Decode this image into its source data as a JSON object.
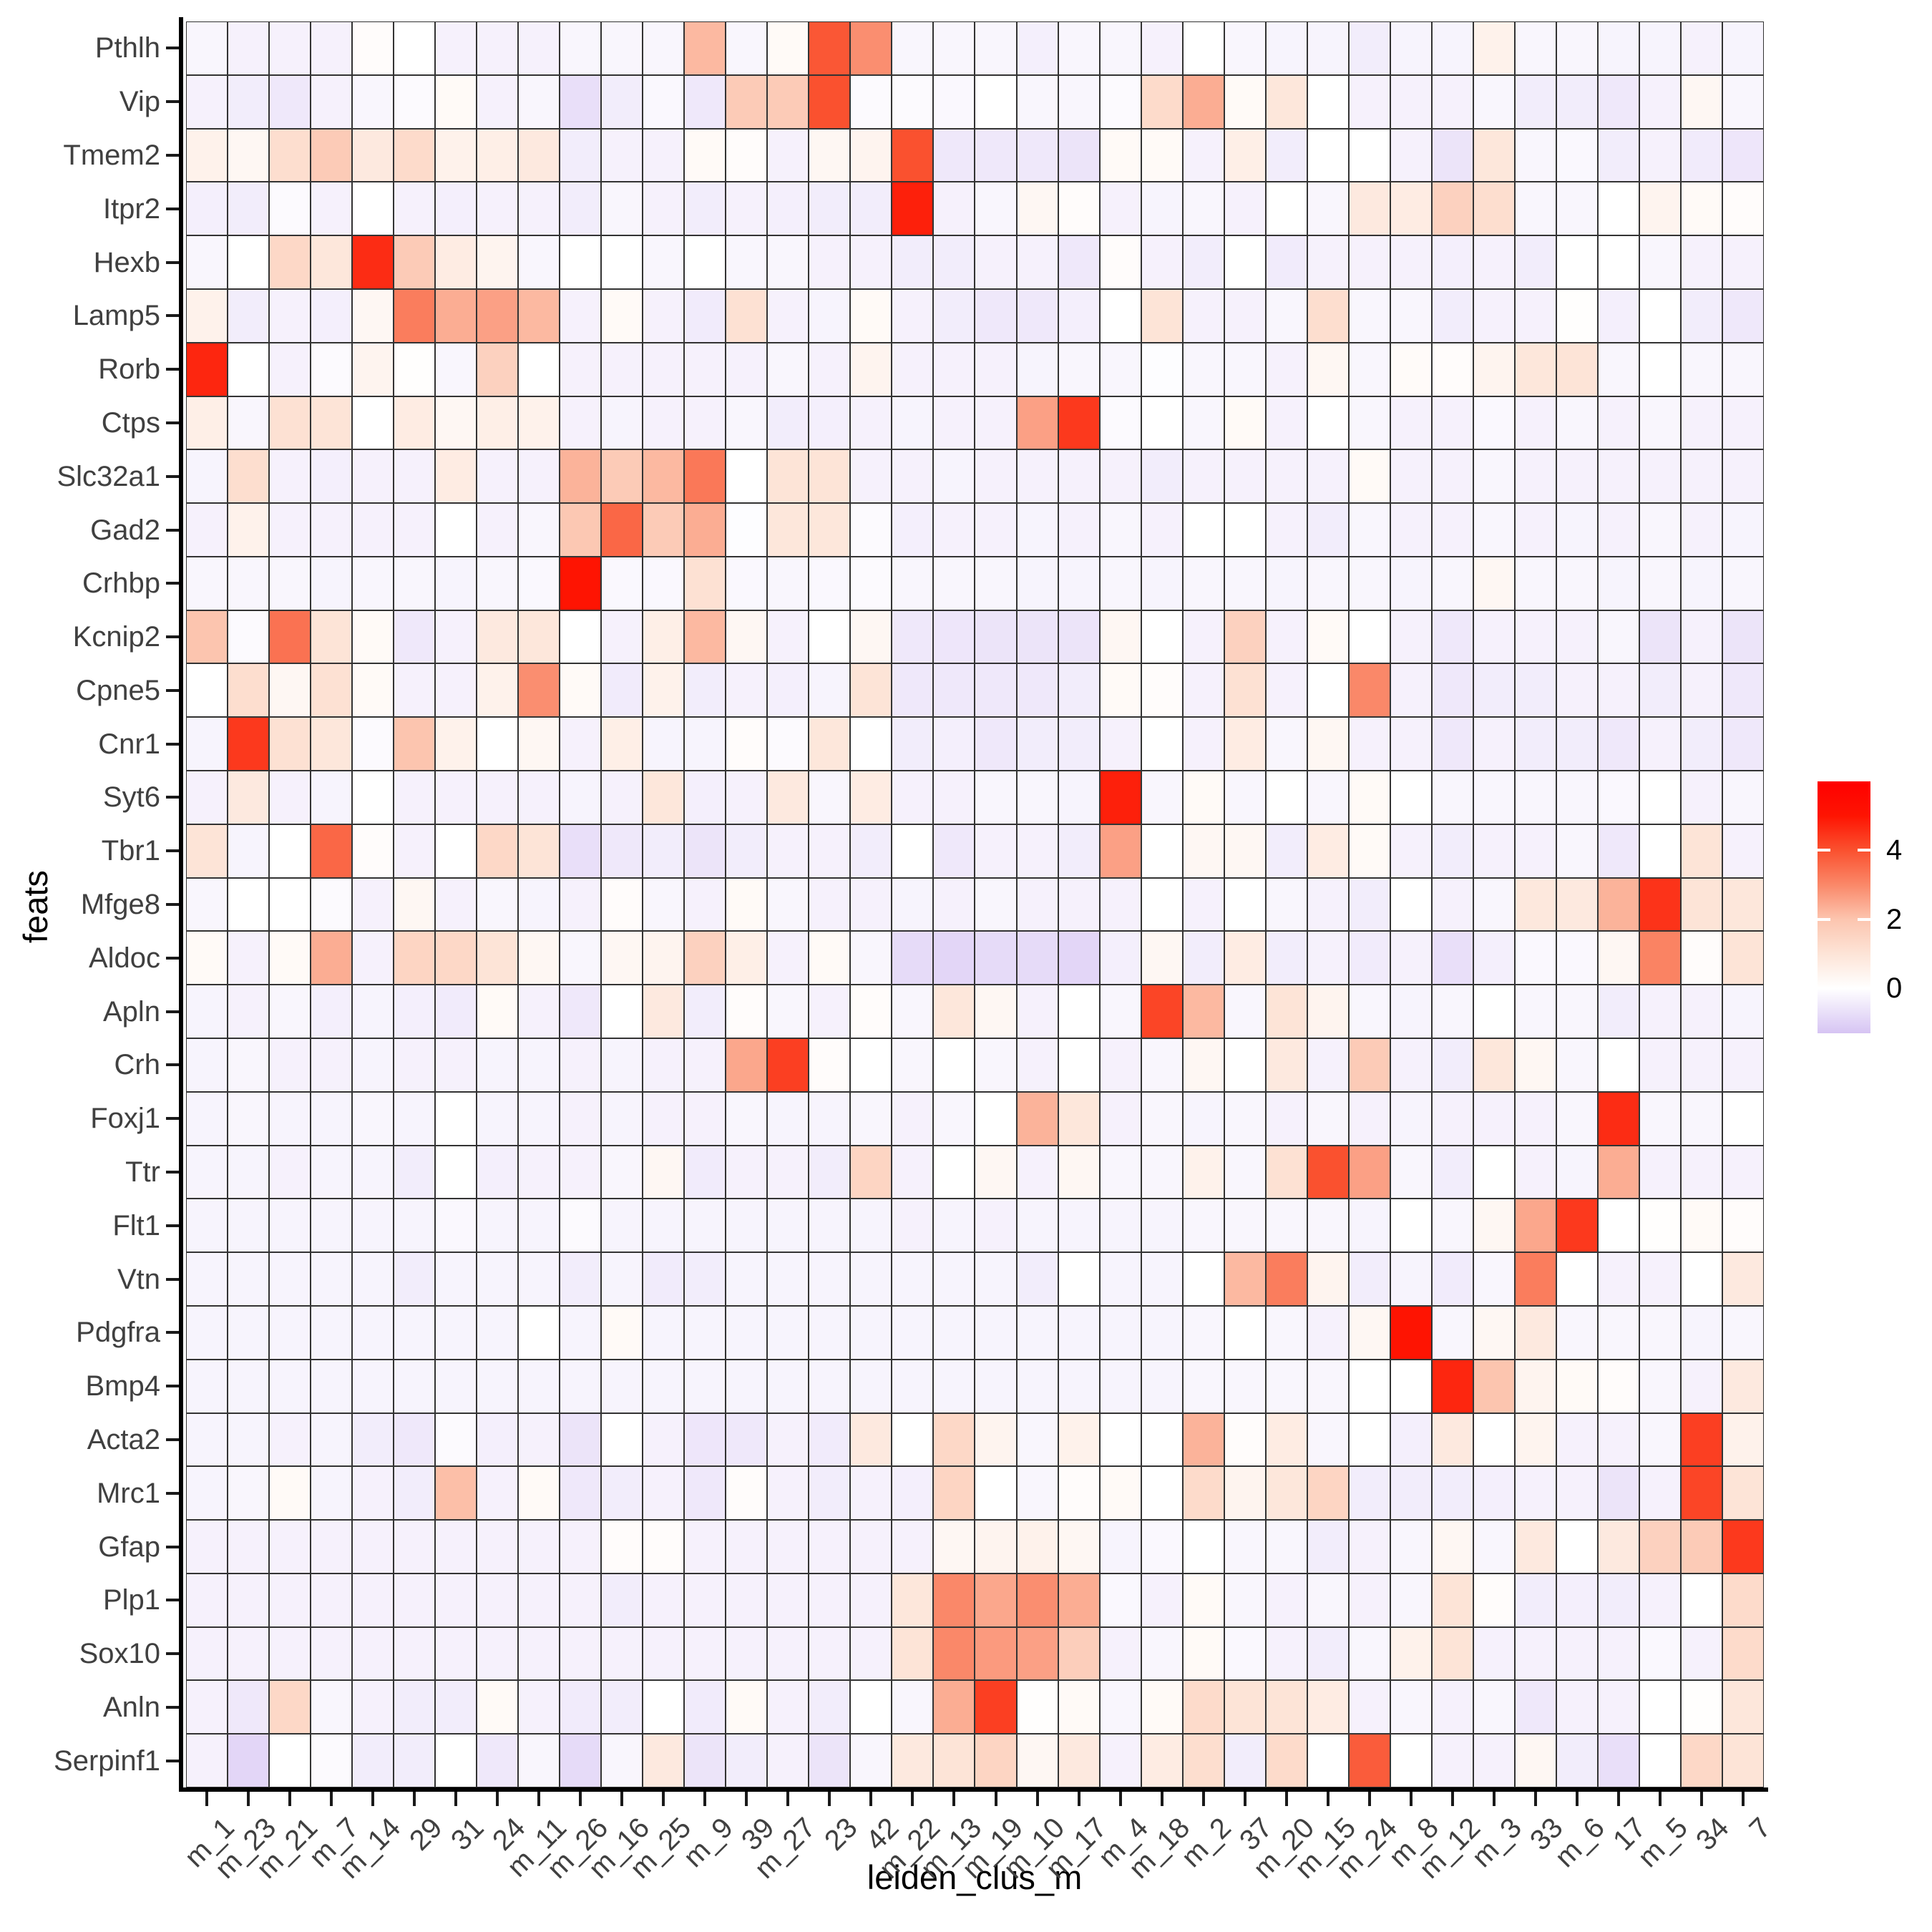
{
  "figure": {
    "x_axis_title": "leiden_clus_m",
    "y_axis_title": "feats"
  },
  "chart_data": {
    "type": "heatmap",
    "title": "",
    "xlabel": "leiden_clus_m",
    "ylabel": "feats",
    "x_categories": [
      "m_1",
      "m_23",
      "m_21",
      "m_7",
      "m_14",
      "29",
      "31",
      "24",
      "m_11",
      "m_26",
      "m_16",
      "m_25",
      "m_9",
      "39",
      "m_27",
      "23",
      "42",
      "m_22",
      "m_13",
      "m_19",
      "m_10",
      "m_17",
      "m_4",
      "m_18",
      "m_2",
      "37",
      "m_20",
      "m_15",
      "m_24",
      "m_8",
      "m_12",
      "m_3",
      "33",
      "m_6",
      "17",
      "m_5",
      "34",
      "7"
    ],
    "y_categories": [
      "Pthlh",
      "Vip",
      "Tmem2",
      "Itpr2",
      "Hexb",
      "Lamp5",
      "Rorb",
      "Ctps",
      "Slc32a1",
      "Gad2",
      "Crhbp",
      "Kcnip2",
      "Cpne5",
      "Cnr1",
      "Syt6",
      "Tbr1",
      "Mfge8",
      "Aldoc",
      "Apln",
      "Crh",
      "Foxj1",
      "Ttr",
      "Flt1",
      "Vtn",
      "Pdgfra",
      "Bmp4",
      "Acta2",
      "Mrc1",
      "Gfap",
      "Plp1",
      "Sox10",
      "Anln",
      "Serpinf1"
    ],
    "values": [
      [
        -0.2,
        -0.3,
        -0.3,
        -0.3,
        0.1,
        0,
        -0.3,
        -0.3,
        -0.3,
        -0.2,
        -0.2,
        -0.2,
        2.2,
        -0.2,
        0.2,
        3.9,
        2.9,
        -0.2,
        -0.2,
        -0.2,
        -0.35,
        -0.2,
        -0.2,
        -0.3,
        0,
        -0.2,
        -0.25,
        -0.25,
        -0.4,
        -0.25,
        -0.25,
        0.5,
        -0.2,
        -0.2,
        -0.25,
        -0.25,
        -0.3,
        -0.25
      ],
      [
        -0.3,
        -0.4,
        -0.5,
        -0.3,
        -0.2,
        -0.1,
        0.2,
        -0.3,
        -0.2,
        -0.7,
        -0.4,
        -0.15,
        -0.5,
        1.8,
        1.8,
        4.0,
        -0.1,
        -0.1,
        -0.15,
        0,
        -0.2,
        -0.2,
        -0.1,
        1.3,
        2.4,
        0.2,
        0.9,
        0,
        -0.3,
        -0.3,
        -0.3,
        -0.2,
        -0.4,
        -0.4,
        -0.5,
        -0.3,
        0.3,
        -0.2
      ],
      [
        0.5,
        0.3,
        1.2,
        1.8,
        0.8,
        1.3,
        0.5,
        0.6,
        0.8,
        -0.4,
        -0.3,
        -0.3,
        0.2,
        0.1,
        -0.3,
        0.3,
        0.4,
        4.0,
        -0.5,
        -0.5,
        -0.5,
        -0.6,
        0.2,
        0.2,
        -0.3,
        0.6,
        -0.4,
        0,
        0,
        -0.3,
        -0.6,
        0.9,
        -0.2,
        -0.15,
        -0.4,
        -0.3,
        -0.45,
        -0.55
      ],
      [
        -0.35,
        -0.4,
        -0.1,
        -0.3,
        0,
        -0.3,
        -0.35,
        -0.3,
        -0.3,
        -0.4,
        -0.2,
        -0.3,
        -0.4,
        -0.3,
        -0.35,
        -0.4,
        -0.4,
        4.8,
        -0.3,
        -0.2,
        0.3,
        0.1,
        -0.3,
        -0.25,
        -0.2,
        -0.3,
        0,
        -0.2,
        0.8,
        0.7,
        1.6,
        1.2,
        -0.2,
        -0.2,
        0,
        0.4,
        0.2,
        0.1
      ],
      [
        -0.2,
        0,
        1.4,
        0.9,
        4.6,
        1.8,
        0.7,
        0.4,
        -0.2,
        0,
        0,
        -0.2,
        0,
        -0.2,
        -0.2,
        -0.3,
        -0.3,
        -0.4,
        -0.4,
        -0.3,
        -0.3,
        -0.5,
        0.1,
        -0.3,
        -0.4,
        0,
        -0.45,
        -0.3,
        -0.3,
        -0.3,
        -0.35,
        -0.3,
        -0.4,
        0,
        0,
        -0.2,
        -0.3,
        -0.3
      ],
      [
        0.5,
        -0.4,
        -0.3,
        -0.35,
        0.3,
        3.2,
        2.4,
        2.6,
        2.2,
        -0.3,
        0.2,
        -0.3,
        -0.45,
        1.1,
        -0.3,
        -0.25,
        0.2,
        -0.3,
        -0.4,
        -0.5,
        -0.5,
        -0.35,
        0,
        1.0,
        -0.3,
        -0.3,
        -0.2,
        1.2,
        -0.2,
        -0.2,
        -0.4,
        -0.3,
        -0.3,
        0.05,
        -0.35,
        0,
        -0.4,
        -0.5
      ],
      [
        4.7,
        0,
        -0.3,
        -0.1,
        0.4,
        0.05,
        -0.2,
        1.6,
        0,
        -0.3,
        -0.3,
        -0.3,
        -0.3,
        -0.3,
        -0.2,
        -0.3,
        0.4,
        -0.3,
        -0.3,
        -0.3,
        -0.25,
        -0.2,
        -0.2,
        -0.05,
        -0.2,
        -0.2,
        -0.3,
        0.3,
        -0.2,
        0.15,
        0.1,
        0.4,
        0.9,
        1.0,
        -0.2,
        0,
        -0.2,
        -0.2
      ],
      [
        0.6,
        -0.2,
        1.1,
        1.0,
        0,
        0.7,
        0.3,
        0.6,
        0.5,
        -0.3,
        -0.25,
        -0.3,
        -0.3,
        -0.2,
        -0.4,
        -0.35,
        -0.3,
        -0.25,
        -0.3,
        -0.3,
        2.6,
        4.4,
        -0.1,
        0,
        -0.2,
        0.2,
        -0.3,
        0,
        -0.2,
        -0.3,
        -0.3,
        -0.15,
        -0.3,
        -0.2,
        -0.3,
        -0.2,
        -0.3,
        -0.3
      ],
      [
        -0.25,
        1.2,
        -0.3,
        -0.35,
        -0.3,
        -0.3,
        0.7,
        -0.3,
        -0.3,
        2.3,
        1.8,
        2.2,
        3.3,
        0,
        1.0,
        1.0,
        -0.3,
        -0.3,
        -0.25,
        -0.3,
        -0.3,
        -0.3,
        -0.3,
        -0.4,
        -0.3,
        -0.3,
        -0.3,
        -0.3,
        0.2,
        -0.3,
        -0.3,
        -0.2,
        -0.3,
        -0.3,
        -0.3,
        -0.3,
        -0.3,
        -0.3
      ],
      [
        -0.3,
        0.5,
        -0.3,
        -0.3,
        -0.3,
        -0.3,
        0,
        -0.3,
        -0.2,
        1.9,
        3.6,
        1.8,
        2.4,
        -0.05,
        0.9,
        0.9,
        -0.1,
        -0.35,
        -0.3,
        -0.3,
        -0.25,
        -0.3,
        -0.2,
        -0.3,
        0,
        0,
        -0.3,
        -0.4,
        -0.2,
        -0.3,
        -0.3,
        -0.2,
        -0.3,
        -0.25,
        -0.3,
        -0.2,
        -0.3,
        -0.25
      ],
      [
        -0.2,
        -0.2,
        -0.2,
        -0.25,
        -0.2,
        -0.2,
        -0.25,
        -0.2,
        -0.15,
        5.0,
        -0.15,
        -0.15,
        1.1,
        -0.15,
        -0.2,
        -0.15,
        -0.1,
        -0.2,
        -0.2,
        -0.2,
        -0.25,
        -0.25,
        -0.2,
        -0.25,
        -0.2,
        -0.2,
        -0.25,
        -0.2,
        -0.2,
        -0.25,
        -0.2,
        0.3,
        -0.2,
        -0.2,
        -0.25,
        -0.2,
        -0.25,
        -0.2
      ],
      [
        2.0,
        -0.1,
        3.4,
        1.0,
        0.2,
        -0.5,
        -0.3,
        0.8,
        0.9,
        0,
        -0.3,
        0.6,
        2.2,
        0.3,
        -0.3,
        0,
        0.3,
        -0.5,
        -0.55,
        -0.6,
        -0.6,
        -0.6,
        0.3,
        0,
        -0.3,
        1.6,
        -0.3,
        0.2,
        0,
        -0.3,
        -0.5,
        -0.3,
        -0.3,
        -0.3,
        -0.2,
        -0.6,
        -0.3,
        -0.6
      ],
      [
        0,
        1.2,
        0.3,
        1.1,
        0.2,
        -0.3,
        -0.3,
        0.5,
        2.9,
        0.2,
        -0.45,
        0.5,
        -0.4,
        -0.3,
        -0.35,
        -0.25,
        1.0,
        -0.5,
        -0.5,
        -0.5,
        -0.5,
        -0.4,
        0.2,
        0.1,
        -0.3,
        1.1,
        -0.3,
        0,
        3.0,
        -0.3,
        -0.5,
        -0.4,
        -0.4,
        -0.3,
        -0.3,
        -0.4,
        -0.3,
        -0.5
      ],
      [
        -0.25,
        4.4,
        1.1,
        0.9,
        -0.1,
        2.0,
        0.5,
        0,
        0.3,
        -0.3,
        0.6,
        -0.25,
        -0.25,
        0.1,
        -0.1,
        0.9,
        0,
        -0.4,
        -0.35,
        -0.5,
        -0.4,
        -0.4,
        -0.3,
        0,
        -0.3,
        0.7,
        -0.2,
        0.3,
        -0.3,
        -0.3,
        -0.5,
        -0.3,
        -0.4,
        -0.4,
        -0.5,
        -0.3,
        -0.4,
        -0.5
      ],
      [
        -0.3,
        0.8,
        -0.3,
        -0.25,
        0,
        -0.3,
        -0.3,
        -0.3,
        -0.3,
        -0.25,
        -0.3,
        0.9,
        -0.35,
        -0.3,
        0.8,
        -0.2,
        0.7,
        -0.3,
        -0.3,
        -0.2,
        -0.2,
        -0.25,
        4.8,
        -0.2,
        0.2,
        -0.2,
        0,
        -0.2,
        0.2,
        0,
        -0.2,
        -0.2,
        -0.2,
        -0.2,
        -0.15,
        0,
        -0.3,
        -0.2
      ],
      [
        1.0,
        -0.25,
        0,
        3.6,
        0.1,
        -0.3,
        0,
        1.4,
        1.0,
        -0.7,
        -0.5,
        -0.4,
        -0.6,
        -0.4,
        -0.3,
        -0.3,
        -0.4,
        0,
        -0.5,
        -0.3,
        -0.3,
        -0.4,
        2.6,
        0,
        0.3,
        0.3,
        -0.4,
        0.7,
        0.2,
        -0.3,
        -0.4,
        -0.3,
        -0.3,
        -0.2,
        -0.5,
        0,
        1.0,
        -0.3
      ],
      [
        -0.2,
        0,
        0,
        -0.1,
        -0.3,
        0.3,
        -0.3,
        -0.2,
        -0.25,
        -0.3,
        0.1,
        -0.2,
        -0.3,
        0.2,
        -0.2,
        -0.3,
        -0.3,
        -0.25,
        -0.3,
        -0.2,
        -0.3,
        -0.3,
        -0.3,
        0,
        -0.3,
        0,
        -0.2,
        -0.3,
        -0.4,
        0,
        -0.3,
        -0.2,
        0.85,
        0.8,
        2.3,
        4.5,
        1.0,
        0.9
      ],
      [
        0.2,
        -0.3,
        0.2,
        2.4,
        -0.3,
        1.5,
        1.4,
        1.0,
        0.3,
        -0.2,
        0.3,
        0.4,
        1.6,
        0.6,
        -0.3,
        0.2,
        -0.2,
        -0.8,
        -0.9,
        -0.8,
        -0.8,
        -0.9,
        -0.35,
        0.3,
        -0.4,
        0.7,
        -0.4,
        -0.3,
        -0.45,
        -0.3,
        -0.7,
        -0.35,
        -0.15,
        -0.15,
        0.3,
        3.1,
        0.1,
        1.0
      ],
      [
        -0.25,
        -0.3,
        -0.2,
        -0.35,
        -0.25,
        -0.35,
        -0.45,
        0.2,
        -0.3,
        -0.5,
        0,
        0.8,
        -0.4,
        0.1,
        -0.2,
        -0.3,
        0.1,
        -0.2,
        0.9,
        0.3,
        -0.3,
        0,
        -0.2,
        4.2,
        2.2,
        -0.2,
        1.0,
        0.4,
        -0.2,
        -0.25,
        -0.2,
        0,
        -0.2,
        -0.2,
        -0.4,
        -0.3,
        -0.3,
        -0.25
      ],
      [
        -0.25,
        -0.2,
        -0.3,
        -0.3,
        -0.25,
        -0.3,
        -0.3,
        -0.25,
        -0.25,
        -0.3,
        -0.25,
        -0.3,
        -0.3,
        2.5,
        4.3,
        0.1,
        0,
        -0.2,
        0,
        -0.2,
        -0.3,
        0,
        -0.3,
        -0.2,
        0.3,
        0,
        0.8,
        -0.3,
        1.8,
        -0.3,
        -0.4,
        0.9,
        0.3,
        -0.2,
        0,
        -0.3,
        -0.3,
        -0.3
      ],
      [
        -0.25,
        -0.2,
        -0.25,
        -0.25,
        -0.2,
        -0.25,
        0,
        -0.25,
        -0.25,
        -0.3,
        -0.25,
        -0.3,
        -0.3,
        -0.2,
        -0.25,
        -0.25,
        -0.2,
        -0.3,
        -0.2,
        0,
        2.3,
        0.9,
        -0.3,
        -0.2,
        -0.25,
        -0.2,
        -0.3,
        -0.2,
        -0.3,
        -0.25,
        -0.3,
        -0.3,
        -0.3,
        -0.2,
        4.6,
        -0.2,
        -0.2,
        0
      ],
      [
        -0.25,
        -0.25,
        -0.3,
        -0.25,
        -0.25,
        -0.4,
        0,
        -0.35,
        -0.3,
        -0.3,
        -0.2,
        0.3,
        -0.45,
        -0.3,
        -0.3,
        -0.4,
        1.5,
        -0.3,
        0,
        0.3,
        -0.3,
        0.3,
        -0.2,
        -0.2,
        0.5,
        -0.2,
        1.1,
        4.0,
        2.6,
        -0.2,
        -0.4,
        0,
        -0.3,
        -0.25,
        2.4,
        -0.3,
        -0.3,
        -0.3
      ],
      [
        -0.25,
        -0.25,
        -0.25,
        -0.25,
        -0.25,
        -0.25,
        -0.15,
        -0.25,
        -0.25,
        -0.1,
        -0.25,
        -0.25,
        -0.25,
        -0.25,
        -0.25,
        -0.25,
        -0.25,
        -0.3,
        -0.25,
        -0.3,
        -0.25,
        -0.25,
        -0.25,
        -0.25,
        -0.2,
        -0.2,
        -0.2,
        -0.2,
        -0.25,
        0,
        -0.2,
        0.3,
        2.5,
        4.4,
        0,
        0.05,
        0.2,
        0.1
      ],
      [
        -0.25,
        -0.25,
        -0.25,
        -0.25,
        -0.25,
        -0.4,
        -0.25,
        -0.25,
        -0.25,
        -0.4,
        -0.25,
        -0.45,
        -0.4,
        -0.25,
        -0.25,
        -0.25,
        -0.25,
        -0.25,
        -0.25,
        -0.25,
        -0.4,
        0,
        -0.25,
        -0.25,
        0,
        2.2,
        3.2,
        0.4,
        -0.4,
        -0.25,
        -0.45,
        -0.2,
        3.2,
        0,
        -0.3,
        -0.3,
        0,
        0.8
      ],
      [
        -0.25,
        -0.25,
        -0.25,
        -0.25,
        -0.25,
        -0.25,
        -0.25,
        -0.25,
        0,
        -0.25,
        0.2,
        -0.25,
        -0.25,
        -0.25,
        -0.25,
        -0.25,
        -0.25,
        -0.25,
        -0.25,
        -0.25,
        -0.25,
        -0.25,
        -0.25,
        -0.25,
        -0.2,
        0,
        -0.2,
        -0.3,
        0.3,
        5.0,
        -0.2,
        0.3,
        0.8,
        -0.2,
        -0.2,
        -0.2,
        -0.25,
        -0.2
      ],
      [
        -0.25,
        -0.25,
        -0.25,
        -0.25,
        -0.25,
        -0.25,
        -0.25,
        -0.25,
        -0.25,
        -0.25,
        -0.25,
        -0.25,
        -0.25,
        -0.25,
        -0.25,
        -0.25,
        -0.25,
        -0.25,
        -0.25,
        -0.25,
        -0.25,
        -0.25,
        -0.25,
        -0.25,
        -0.2,
        -0.2,
        -0.2,
        -0.2,
        0,
        0,
        4.7,
        2.0,
        0.4,
        0.2,
        0.1,
        -0.2,
        -0.3,
        0.8
      ],
      [
        -0.25,
        -0.25,
        -0.3,
        -0.25,
        -0.4,
        -0.5,
        -0.1,
        -0.35,
        -0.3,
        -0.6,
        0,
        -0.3,
        -0.55,
        -0.5,
        -0.3,
        -0.45,
        0.8,
        0,
        1.4,
        0.4,
        -0.2,
        0.5,
        0,
        0,
        2.3,
        0.1,
        0.7,
        -0.2,
        0,
        -0.35,
        0.8,
        0,
        0.4,
        -0.3,
        -0.3,
        -0.2,
        4.3,
        0.5
      ],
      [
        -0.25,
        -0.2,
        0.2,
        -0.25,
        -0.3,
        -0.4,
        2.1,
        -0.3,
        0.2,
        -0.5,
        -0.4,
        -0.3,
        -0.5,
        0.1,
        -0.3,
        -0.4,
        -0.3,
        -0.35,
        1.5,
        0,
        -0.2,
        0.1,
        0.2,
        0,
        1.3,
        0.4,
        0.9,
        1.5,
        -0.4,
        -0.4,
        -0.4,
        -0.35,
        -0.3,
        -0.3,
        -0.6,
        -0.3,
        4.2,
        1.0
      ],
      [
        -0.3,
        -0.3,
        -0.3,
        -0.3,
        -0.3,
        -0.3,
        -0.3,
        -0.3,
        -0.3,
        -0.3,
        0.1,
        0.1,
        -0.3,
        -0.3,
        -0.3,
        -0.3,
        -0.3,
        -0.3,
        0.3,
        0.4,
        0.5,
        0.3,
        -0.25,
        -0.15,
        0,
        -0.2,
        -0.2,
        -0.4,
        -0.3,
        -0.2,
        0.3,
        -0.2,
        0.8,
        0,
        0.8,
        1.6,
        1.8,
        4.4
      ],
      [
        -0.3,
        -0.3,
        -0.3,
        -0.3,
        -0.3,
        -0.3,
        -0.3,
        -0.3,
        -0.3,
        -0.3,
        -0.4,
        -0.3,
        -0.3,
        -0.3,
        -0.3,
        -0.3,
        -0.3,
        0.9,
        3.0,
        2.5,
        2.9,
        2.4,
        -0.15,
        -0.3,
        0.2,
        -0.2,
        -0.3,
        -0.2,
        -0.3,
        -0.2,
        1.0,
        0.1,
        -0.4,
        -0.35,
        -0.4,
        -0.3,
        0,
        1.3
      ],
      [
        -0.3,
        -0.3,
        -0.3,
        -0.3,
        -0.3,
        -0.3,
        -0.3,
        -0.3,
        -0.3,
        -0.3,
        -0.3,
        -0.3,
        -0.3,
        -0.3,
        -0.3,
        -0.3,
        -0.3,
        1.0,
        3.0,
        2.7,
        2.6,
        1.7,
        -0.3,
        -0.2,
        0.2,
        -0.15,
        -0.3,
        -0.4,
        -0.2,
        0.5,
        1.0,
        -0.3,
        -0.3,
        -0.3,
        -0.3,
        -0.15,
        -0.3,
        1.3
      ],
      [
        -0.3,
        -0.5,
        1.4,
        -0.2,
        -0.3,
        -0.4,
        -0.4,
        0.2,
        -0.3,
        -0.45,
        -0.4,
        0,
        -0.45,
        0.2,
        -0.3,
        -0.4,
        0,
        -0.2,
        2.4,
        4.3,
        0.05,
        0.2,
        -0.2,
        0.2,
        1.3,
        1.0,
        1.0,
        0.7,
        -0.3,
        -0.2,
        -0.3,
        -0.2,
        -0.5,
        -0.3,
        -0.3,
        0,
        0.05,
        0.9
      ],
      [
        -0.3,
        -0.9,
        0,
        -0.1,
        -0.4,
        -0.4,
        0,
        -0.5,
        -0.2,
        -0.8,
        -0.2,
        0.8,
        -0.6,
        -0.4,
        -0.3,
        -0.6,
        -0.2,
        0.8,
        1.0,
        1.5,
        0.3,
        0.8,
        -0.3,
        0.7,
        1.2,
        -0.4,
        1.3,
        0,
        3.8,
        0,
        -0.3,
        -0.3,
        0.3,
        -0.4,
        -0.7,
        0,
        1.4,
        1.0
      ]
    ],
    "legend": {
      "ticks": [
        4,
        2,
        0
      ],
      "value_min": -1.3,
      "value_max": 6.0
    },
    "colormap": {
      "stops": [
        {
          "v": -1.3,
          "color": "#d6c4f3"
        },
        {
          "v": 0.0,
          "color": "#ffffff"
        },
        {
          "v": 1.0,
          "color": "#fde4d7"
        },
        {
          "v": 2.0,
          "color": "#fcc5af"
        },
        {
          "v": 3.0,
          "color": "#fa8869"
        },
        {
          "v": 4.0,
          "color": "#fa512f"
        },
        {
          "v": 5.0,
          "color": "#fe1402"
        },
        {
          "v": 6.0,
          "color": "#ff0000"
        }
      ]
    },
    "grid_line_color": "#333333",
    "axis_text_color": "#404040",
    "axis_line_color": "#000000"
  }
}
